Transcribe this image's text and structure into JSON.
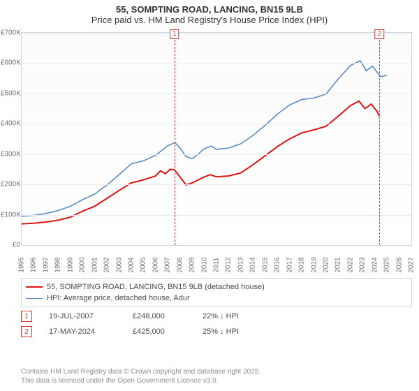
{
  "title": {
    "line1": "55, SOMPTING ROAD, LANCING, BN15 9LB",
    "line2": "Price paid vs. HM Land Registry's House Price Index (HPI)"
  },
  "chart": {
    "type": "line",
    "background_color": "#ffffff",
    "plot_border_color": "#cfd6dd",
    "grid_color": "#e8ebef",
    "ylim": [
      0,
      700000
    ],
    "ytick_step": 100000,
    "yticklabels": [
      "£0",
      "£100K",
      "£200K",
      "£300K",
      "£400K",
      "£500K",
      "£600K",
      "£700K"
    ],
    "xlim": [
      1995,
      2027
    ],
    "xticks": [
      1995,
      1996,
      1997,
      1998,
      1999,
      2000,
      2001,
      2002,
      2003,
      2004,
      2005,
      2006,
      2007,
      2008,
      2009,
      2010,
      2011,
      2012,
      2013,
      2014,
      2015,
      2016,
      2017,
      2018,
      2019,
      2020,
      2021,
      2022,
      2023,
      2024,
      2025,
      2026,
      2027
    ],
    "y_axis_fontsize": 10,
    "x_axis_fontsize": 10,
    "axis_color": "#6a7178",
    "series": [
      {
        "name": "price_paid",
        "label": "55, SOMPTING ROAD, LANCING, BN15 9LB (detached house)",
        "color": "#dc1414",
        "line_width": 2,
        "data": [
          [
            1995,
            70000
          ],
          [
            1996,
            72000
          ],
          [
            1997,
            76000
          ],
          [
            1998,
            82000
          ],
          [
            1999,
            92000
          ],
          [
            2000,
            112000
          ],
          [
            2001,
            128000
          ],
          [
            2002,
            154000
          ],
          [
            2003,
            180000
          ],
          [
            2004,
            205000
          ],
          [
            2005,
            215000
          ],
          [
            2006,
            228000
          ],
          [
            2006.4,
            245000
          ],
          [
            2006.8,
            235000
          ],
          [
            2007.2,
            250000
          ],
          [
            2007.55,
            248000
          ],
          [
            2008,
            225000
          ],
          [
            2008.5,
            198000
          ],
          [
            2009,
            205000
          ],
          [
            2010,
            225000
          ],
          [
            2010.5,
            232000
          ],
          [
            2011,
            225000
          ],
          [
            2012,
            228000
          ],
          [
            2013,
            238000
          ],
          [
            2014,
            265000
          ],
          [
            2015,
            295000
          ],
          [
            2016,
            325000
          ],
          [
            2017,
            350000
          ],
          [
            2018,
            370000
          ],
          [
            2019,
            380000
          ],
          [
            2020,
            392000
          ],
          [
            2021,
            425000
          ],
          [
            2022,
            460000
          ],
          [
            2022.7,
            475000
          ],
          [
            2023.2,
            450000
          ],
          [
            2023.7,
            465000
          ],
          [
            2024.2,
            440000
          ],
          [
            2024.37,
            425000
          ]
        ]
      },
      {
        "name": "hpi",
        "label": "HPI: Average price, detached house, Adur",
        "color": "#5a8bc8",
        "line_width": 1.6,
        "data": [
          [
            1995,
            95000
          ],
          [
            1996,
            98000
          ],
          [
            1997,
            104000
          ],
          [
            1998,
            114000
          ],
          [
            1999,
            128000
          ],
          [
            2000,
            150000
          ],
          [
            2001,
            168000
          ],
          [
            2002,
            198000
          ],
          [
            2003,
            232000
          ],
          [
            2004,
            268000
          ],
          [
            2005,
            278000
          ],
          [
            2006,
            296000
          ],
          [
            2006.5,
            312000
          ],
          [
            2007,
            328000
          ],
          [
            2007.6,
            338000
          ],
          [
            2008,
            320000
          ],
          [
            2008.5,
            292000
          ],
          [
            2009,
            285000
          ],
          [
            2009.5,
            300000
          ],
          [
            2010,
            318000
          ],
          [
            2010.6,
            326000
          ],
          [
            2011,
            316000
          ],
          [
            2012,
            320000
          ],
          [
            2013,
            334000
          ],
          [
            2014,
            362000
          ],
          [
            2015,
            395000
          ],
          [
            2016,
            432000
          ],
          [
            2017,
            462000
          ],
          [
            2018,
            480000
          ],
          [
            2019,
            485000
          ],
          [
            2020,
            498000
          ],
          [
            2021,
            548000
          ],
          [
            2022,
            592000
          ],
          [
            2022.8,
            608000
          ],
          [
            2023.3,
            575000
          ],
          [
            2023.8,
            590000
          ],
          [
            2024.5,
            555000
          ],
          [
            2025,
            560000
          ]
        ]
      }
    ],
    "markers": [
      {
        "n": "1",
        "x": 2007.55
      },
      {
        "n": "2",
        "x": 2024.37
      }
    ]
  },
  "legend": {
    "border_color": "#cfd6dd",
    "rows": [
      {
        "color": "#dc1414",
        "width": 2,
        "label": "55, SOMPTING ROAD, LANCING, BN15 9LB (detached house)"
      },
      {
        "color": "#5a8bc8",
        "width": 1.6,
        "label": "HPI: Average price, detached house, Adur"
      }
    ]
  },
  "events": [
    {
      "n": "1",
      "date": "19-JUL-2007",
      "price": "£248,000",
      "note": "22% ↓ HPI"
    },
    {
      "n": "2",
      "date": "17-MAY-2024",
      "price": "£425,000",
      "note": "25% ↓ HPI"
    }
  ],
  "footer": {
    "line1": "Contains HM Land Registry data © Crown copyright and database right 2025.",
    "line2": "This data is licensed under the Open Government Licence v3.0."
  }
}
